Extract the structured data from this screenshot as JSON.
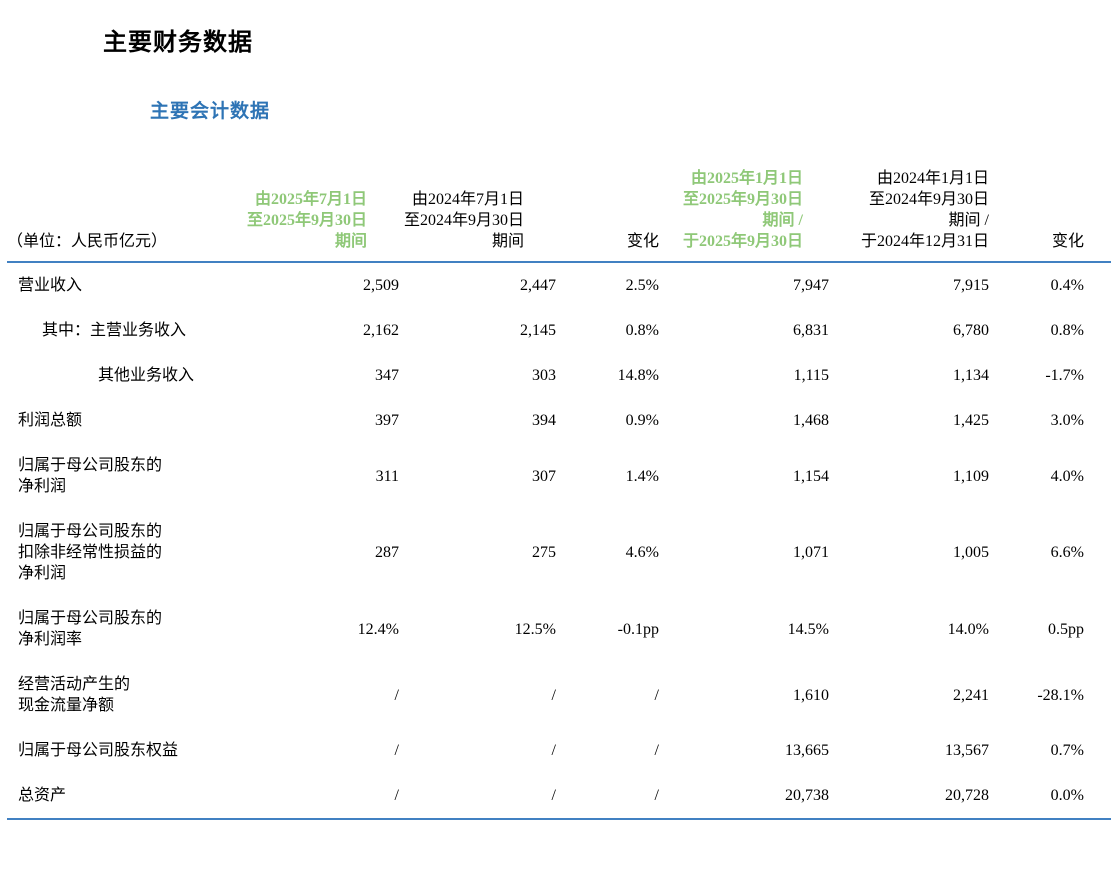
{
  "page": {
    "title": "主要财务数据",
    "subtitle": "主要会计数据"
  },
  "colors": {
    "highlight_green": "#8FC878",
    "heading_blue": "#2E74B5",
    "rule_blue": "#4181C2"
  },
  "table": {
    "unit_label": "（单位：人民币亿元）",
    "columns": [
      {
        "text": "由2025年7月1日\n至2025年9月30日\n期间",
        "highlight": true,
        "pad": "hpad32"
      },
      {
        "text": "由2024年7月1日\n至2024年9月30日\n期间",
        "highlight": false,
        "pad": "hpad32"
      },
      {
        "text": "变化",
        "highlight": false,
        "pad": ""
      },
      {
        "text": "由2025年1月1日\n至2025年9月30日\n期间 /\n于2025年9月30日",
        "highlight": true,
        "pad": "hpad26"
      },
      {
        "text": "由2024年1月1日\n至2024年9月30日\n期间 /\n于2024年12月31日",
        "highlight": false,
        "pad": ""
      },
      {
        "text": "变化",
        "highlight": false,
        "pad": "hpad27"
      }
    ],
    "rows": [
      {
        "label": "营业收入",
        "indent": 0,
        "values": [
          "2,509",
          "2,447",
          "2.5%",
          "7,947",
          "7,915",
          "0.4%"
        ]
      },
      {
        "label": "其中：主营业务收入",
        "indent": 1,
        "values": [
          "2,162",
          "2,145",
          "0.8%",
          "6,831",
          "6,780",
          "0.8%"
        ]
      },
      {
        "label": "其他业务收入",
        "indent": 2,
        "values": [
          "347",
          "303",
          "14.8%",
          "1,115",
          "1,134",
          "-1.7%"
        ]
      },
      {
        "label": "利润总额",
        "indent": 0,
        "values": [
          "397",
          "394",
          "0.9%",
          "1,468",
          "1,425",
          "3.0%"
        ]
      },
      {
        "label": "归属于母公司股东的\n净利润",
        "indent": 0,
        "values": [
          "311",
          "307",
          "1.4%",
          "1,154",
          "1,109",
          "4.0%"
        ]
      },
      {
        "label": "归属于母公司股东的\n扣除非经常性损益的\n净利润",
        "indent": 0,
        "values": [
          "287",
          "275",
          "4.6%",
          "1,071",
          "1,005",
          "6.6%"
        ]
      },
      {
        "label": "归属于母公司股东的\n净利润率",
        "indent": 0,
        "values": [
          "12.4%",
          "12.5%",
          "-0.1pp",
          "14.5%",
          "14.0%",
          "0.5pp"
        ]
      },
      {
        "label": "经营活动产生的\n现金流量净额",
        "indent": 0,
        "values": [
          "/",
          "/",
          "/",
          "1,610",
          "2,241",
          "-28.1%"
        ]
      },
      {
        "label": "归属于母公司股东权益",
        "indent": 0,
        "values": [
          "/",
          "/",
          "/",
          "13,665",
          "13,567",
          "0.7%"
        ]
      },
      {
        "label": "总资产",
        "indent": 0,
        "values": [
          "/",
          "/",
          "/",
          "20,738",
          "20,728",
          "0.0%"
        ]
      }
    ]
  }
}
